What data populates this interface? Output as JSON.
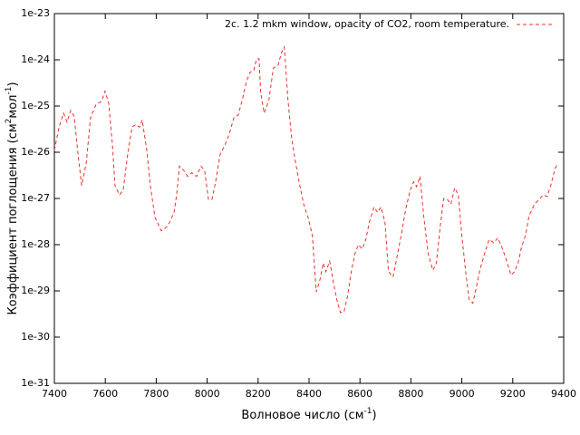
{
  "chart_data": {
    "type": "line",
    "xlabel": [
      "Волновое число (см",
      "-1",
      ")"
    ],
    "ylabel": [
      "Коэффициент поглощения (см",
      "2",
      "мол",
      "-1",
      ")"
    ],
    "xlim": [
      7400,
      9400
    ],
    "xticks": [
      7400,
      7600,
      7800,
      8000,
      8200,
      8400,
      8600,
      8800,
      9000,
      9200,
      9400
    ],
    "ylim": [
      1e-31,
      1e-23
    ],
    "yticks": [
      1e-31,
      1e-30,
      1e-29,
      1e-28,
      1e-27,
      1e-26,
      1e-25,
      1e-24,
      1e-23
    ],
    "log_y": true,
    "grid": false,
    "legend": "top right",
    "series": [
      {
        "name": "2c. 1.2 mkm window, opacity of CO2, room temperature.",
        "color": "#e8322a",
        "dash": true,
        "x": [
          7400,
          7418,
          7436,
          7450,
          7464,
          7478,
          7493,
          7507,
          7525,
          7542,
          7564,
          7585,
          7599,
          7614,
          7628,
          7638,
          7656,
          7670,
          7688,
          7705,
          7720,
          7734,
          7745,
          7763,
          7777,
          7795,
          7820,
          7845,
          7870,
          7880,
          7891,
          7909,
          7923,
          7940,
          7958,
          7976,
          7990,
          8005,
          8019,
          8033,
          8051,
          8069,
          8087,
          8105,
          8122,
          8140,
          8154,
          8169,
          8183,
          8194,
          8204,
          8210,
          8224,
          8242,
          8260,
          8278,
          8292,
          8303,
          8317,
          8331,
          8345,
          8361,
          8379,
          8396,
          8413,
          8428,
          8442,
          8456,
          8466,
          8481,
          8495,
          8509,
          8523,
          8537,
          8552,
          8566,
          8580,
          8594,
          8609,
          8623,
          8637,
          8655,
          8669,
          8683,
          8698,
          8712,
          8730,
          8744,
          8762,
          8780,
          8797,
          8811,
          8822,
          8836,
          8851,
          8868,
          8886,
          8900,
          8915,
          8929,
          8943,
          8957,
          8972,
          8986,
          9000,
          9015,
          9029,
          9043,
          9057,
          9072,
          9089,
          9107,
          9125,
          9142,
          9160,
          9179,
          9193,
          9207,
          9221,
          9235,
          9250,
          9264,
          9285,
          9304,
          9320,
          9335,
          9349,
          9367,
          9378
        ],
        "values": [
          1.1e-26,
          3.5e-26,
          7e-26,
          4.5e-26,
          8e-26,
          6e-26,
          9e-27,
          1.9e-27,
          5.7e-27,
          5.6e-26,
          1.1e-25,
          1.25e-25,
          2.1e-25,
          1.1e-25,
          1.4e-26,
          1.9e-27,
          1.2e-27,
          1.5e-27,
          9e-27,
          3.5e-26,
          4e-26,
          3.5e-26,
          5e-26,
          1.1e-26,
          1.9e-27,
          3.9e-28,
          2e-28,
          2.5e-28,
          5e-28,
          1.2e-27,
          5e-27,
          4e-27,
          3e-27,
          3.6e-27,
          3e-27,
          5e-27,
          4e-27,
          9.5e-28,
          9.5e-28,
          2.3e-27,
          9e-27,
          1.4e-26,
          2.5e-26,
          5.6e-26,
          6.4e-26,
          1.5e-25,
          3.4e-25,
          5.4e-25,
          5.8e-25,
          1.05e-24,
          1.05e-24,
          2e-25,
          7e-26,
          1.3e-25,
          6.7e-25,
          7.5e-25,
          1.45e-24,
          1.9e-24,
          1.4e-25,
          2.2e-26,
          7e-27,
          2.3e-27,
          7.5e-28,
          3.9e-28,
          1.6e-28,
          9.5e-30,
          1.65e-29,
          4e-29,
          2.6e-29,
          4.4e-29,
          1.6e-29,
          6.6e-30,
          3.4e-30,
          3.5e-30,
          8e-30,
          2.6e-29,
          6.3e-29,
          1e-28,
          8e-29,
          1.3e-28,
          3.1e-28,
          6.5e-28,
          5e-28,
          6.5e-28,
          3.1e-28,
          2.6e-29,
          2e-29,
          5e-29,
          1.6e-28,
          6e-28,
          1.5e-27,
          2.3e-27,
          1.8e-27,
          3e-27,
          3.9e-28,
          6.3e-29,
          2.8e-29,
          4e-29,
          2.4e-28,
          1e-27,
          9.5e-28,
          7.5e-28,
          1.7e-27,
          1.2e-27,
          1.6e-28,
          2.6e-29,
          6.6e-30,
          5.4e-30,
          1.2e-29,
          3e-29,
          6.3e-29,
          1.3e-28,
          1.1e-28,
          1.4e-28,
          8e-29,
          4e-29,
          2.2e-29,
          2.6e-29,
          4e-29,
          9e-29,
          1.6e-28,
          4.2e-28,
          7.5e-28,
          9.5e-28,
          1.2e-27,
          1.1e-27,
          1.9e-27,
          4.6e-27,
          5.7e-27
        ]
      }
    ]
  }
}
